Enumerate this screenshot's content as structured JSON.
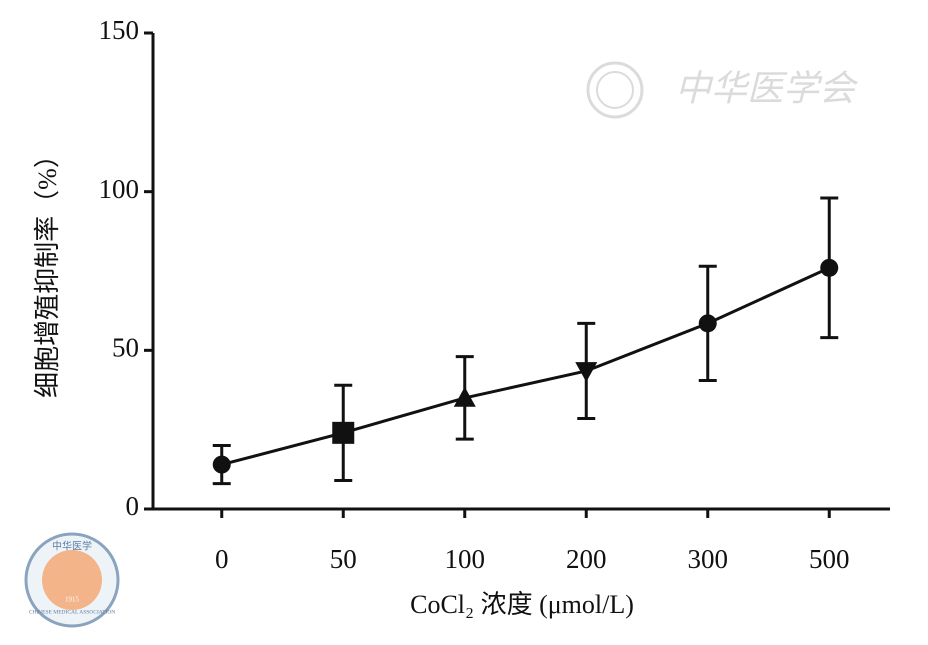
{
  "chart_data": {
    "type": "line",
    "y_label": "细胞增殖抑制率（%）",
    "x_label": "CoCl₂ 浓度 (μmol/L)",
    "categories": [
      "0",
      "50",
      "100",
      "200",
      "300",
      "500"
    ],
    "values": [
      14,
      24,
      35,
      43.5,
      58.5,
      76
    ],
    "errors": [
      6,
      15,
      13,
      15,
      18,
      22
    ],
    "markers": [
      "circle",
      "square",
      "triangle-up",
      "triangle-down",
      "circle",
      "circle"
    ],
    "color": "#111111",
    "ylim": [
      0,
      150
    ],
    "yticks": [
      0,
      50,
      100,
      150
    ],
    "grid": false,
    "watermark": "中华医学会",
    "logo": {
      "top": "中华医学",
      "bottom": "CHINESE MEDICAL ASSOCIATION",
      "year": "1915"
    }
  }
}
